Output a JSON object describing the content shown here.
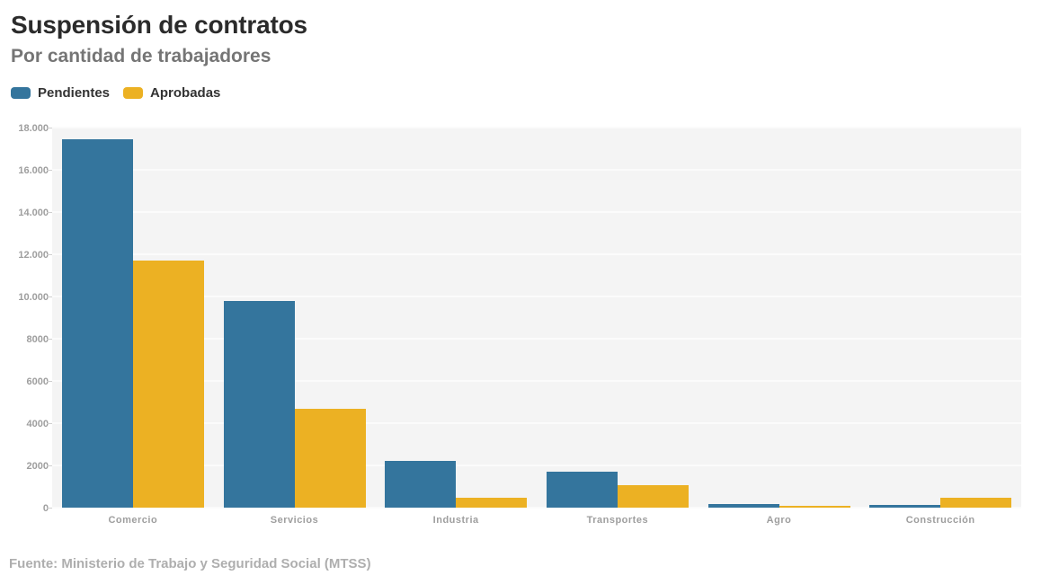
{
  "header": {
    "title": "Suspensión de contratos",
    "subtitle": "Por cantidad de trabajadores"
  },
  "footer": {
    "source": "Fuente: Ministerio de Trabajo y Seguridad Social (MTSS)"
  },
  "colors": {
    "pendientes": "#34759d",
    "aprobadas": "#ecb123",
    "plot_background": "#f4f4f4",
    "gridline": "#fbfbfb",
    "axis_text": "#9e9e9e",
    "title_text": "#2b2b2b",
    "subtitle_text": "#757575",
    "source_text": "#aeaeae"
  },
  "chart_data": {
    "type": "bar",
    "variant": "grouped-columns",
    "title": "Suspensión de contratos",
    "subtitle": "Por cantidad de trabajadores",
    "xlabel": "",
    "ylabel": "",
    "categories": [
      "Comercio",
      "Servicios",
      "Industria",
      "Transportes",
      "Agro",
      "Construcción"
    ],
    "series": [
      {
        "name": "Pendientes",
        "color": "#34759d",
        "values": [
          17450,
          9800,
          2200,
          1700,
          170,
          140
        ]
      },
      {
        "name": "Aprobadas",
        "color": "#ecb123",
        "values": [
          11700,
          4700,
          480,
          1050,
          70,
          460
        ]
      }
    ],
    "ylim": [
      0,
      18000
    ],
    "y_tick_interval": 2000,
    "y_ticks": [
      0,
      2000,
      4000,
      6000,
      8000,
      10000,
      12000,
      14000,
      16000,
      18000
    ],
    "y_tick_labels": [
      "0",
      "2000",
      "4000",
      "6000",
      "8000",
      "10.000",
      "12.000",
      "14.000",
      "16.000",
      "18.000"
    ],
    "grid": true,
    "legend_position": "top-left",
    "source": "Fuente: Ministerio de Trabajo y Seguridad Social (MTSS)"
  }
}
